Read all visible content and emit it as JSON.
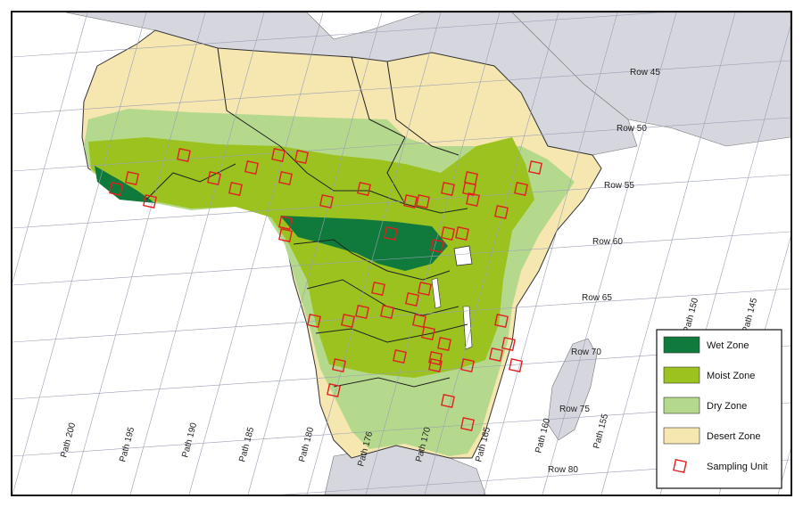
{
  "rows": [
    "Row 45",
    "Row 50",
    "Row 55",
    "Row 60",
    "Row 65",
    "Row 70",
    "Row 75",
    "Row 80"
  ],
  "paths": [
    "Path 200",
    "Path 195",
    "Path 190",
    "Path 185",
    "Path 180",
    "Path 176",
    "Path 170",
    "Path 165",
    "Path 160",
    "Path 155",
    "Path 150",
    "Path 145"
  ],
  "legend": [
    {
      "label": "Wet Zone",
      "color": "#0f7a3c"
    },
    {
      "label": "Moist Zone",
      "color": "#9cc21f"
    },
    {
      "label": "Dry Zone",
      "color": "#b5d98c"
    },
    {
      "label": "Desert Zone",
      "color": "#f6e6b0"
    },
    {
      "label": "Sampling Unit",
      "color": "#e02020"
    }
  ],
  "colors": {
    "sea": "#ffffff",
    "land_other": "#d8d8e0",
    "grid": "#9aa0b4",
    "border": "#111111"
  }
}
